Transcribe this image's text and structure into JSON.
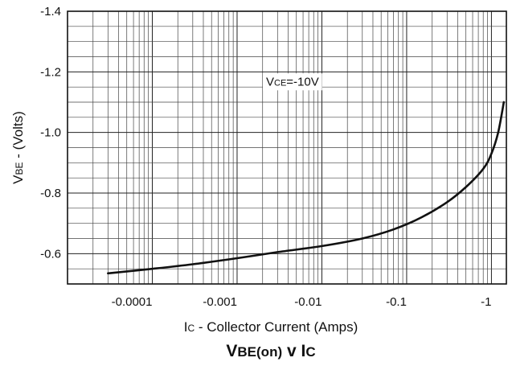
{
  "chart_data": {
    "type": "line",
    "title": "VBE(on) v IC",
    "title_parts": [
      {
        "text": "V",
        "sub": false
      },
      {
        "text": "BE(on)",
        "sub": true
      },
      {
        "text": " v I",
        "sub": false
      },
      {
        "text": "C",
        "sub": true
      }
    ],
    "xlabel": "IC - Collector Current (Amps)",
    "xlabel_parts": [
      {
        "text": "I",
        "sub": false
      },
      {
        "text": "C",
        "sub": true
      },
      {
        "text": " - Collector Current (Amps)",
        "sub": false
      }
    ],
    "ylabel": "VBE - (Volts)",
    "ylabel_parts": [
      {
        "text": "V",
        "sub": false
      },
      {
        "text": "BE",
        "sub": true
      },
      {
        "text": " - (Volts)",
        "sub": false
      }
    ],
    "x_scale": "log",
    "x_decade_exponents": [
      -5,
      -4,
      -3,
      -2,
      -1,
      0
    ],
    "xlim": [
      1e-05,
      1.5
    ],
    "x_ticks": [
      {
        "value": -0.0001,
        "label": "-0.0001"
      },
      {
        "value": -0.001,
        "label": "-0.001"
      },
      {
        "value": -0.01,
        "label": "-0.01"
      },
      {
        "value": -0.1,
        "label": "-0.1"
      },
      {
        "value": -1,
        "label": "-1"
      }
    ],
    "ylim": [
      -0.5,
      -1.4
    ],
    "y_ticks": [
      {
        "value": -0.6,
        "label": "-0.6"
      },
      {
        "value": -0.8,
        "label": "-0.8"
      },
      {
        "value": -1.0,
        "label": "-1.0"
      },
      {
        "value": -1.2,
        "label": "-1.2"
      },
      {
        "value": -1.4,
        "label": "-1.4"
      }
    ],
    "y_grid_step": 0.05,
    "grid": true,
    "annotation": {
      "text": "VCE=-10V",
      "parts": [
        {
          "text": "V",
          "sub": false
        },
        {
          "text": "CE",
          "sub": true
        },
        {
          "text": "=-10V",
          "sub": false
        }
      ]
    },
    "series": [
      {
        "points": [
          {
            "x": -3e-05,
            "y": -0.535
          },
          {
            "x": -0.0001,
            "y": -0.55
          },
          {
            "x": -0.0003,
            "y": -0.565
          },
          {
            "x": -0.001,
            "y": -0.585
          },
          {
            "x": -0.003,
            "y": -0.605
          },
          {
            "x": -0.01,
            "y": -0.625
          },
          {
            "x": -0.03,
            "y": -0.65
          },
          {
            "x": -0.07,
            "y": -0.68
          },
          {
            "x": -0.15,
            "y": -0.72
          },
          {
            "x": -0.3,
            "y": -0.77
          },
          {
            "x": -0.5,
            "y": -0.82
          },
          {
            "x": -0.8,
            "y": -0.88
          },
          {
            "x": -1.0,
            "y": -0.93
          },
          {
            "x": -1.2,
            "y": -1.0
          },
          {
            "x": -1.4,
            "y": -1.1
          }
        ]
      }
    ]
  }
}
